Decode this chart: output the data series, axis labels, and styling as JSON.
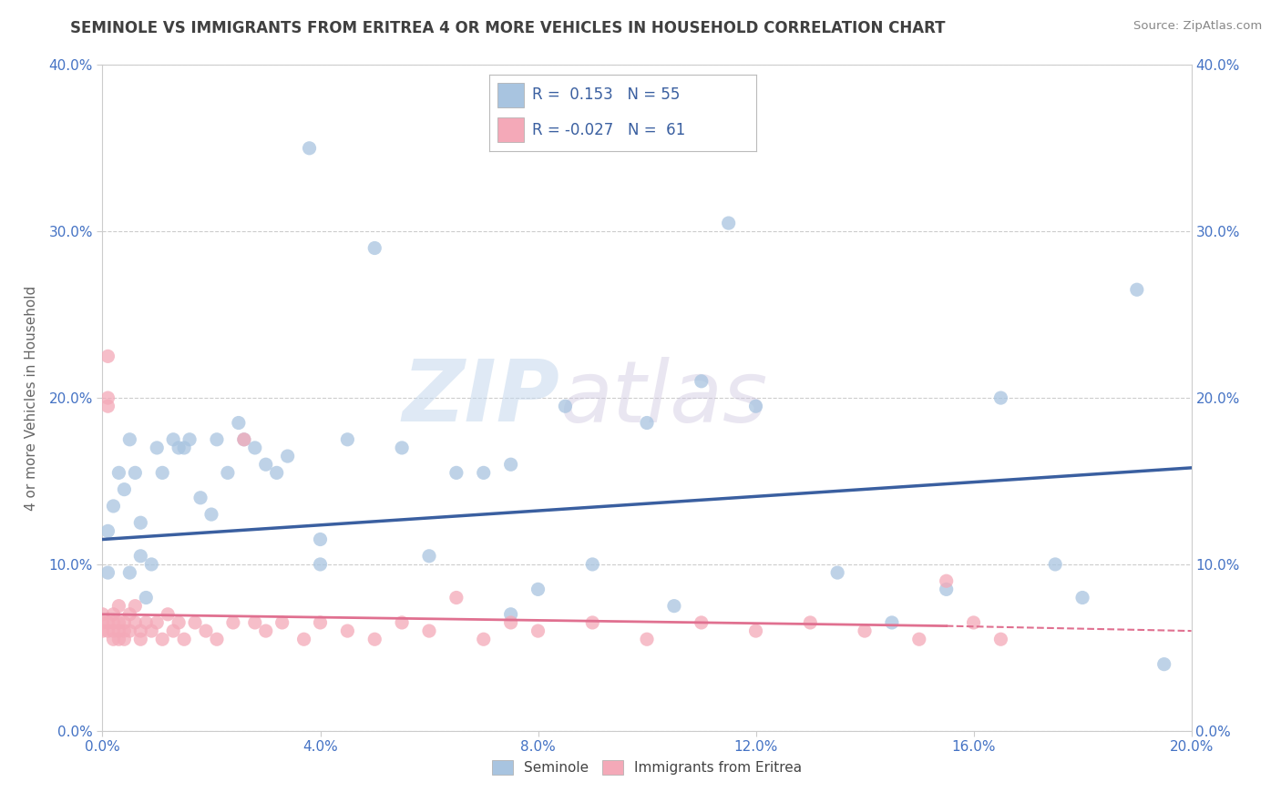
{
  "title": "SEMINOLE VS IMMIGRANTS FROM ERITREA 4 OR MORE VEHICLES IN HOUSEHOLD CORRELATION CHART",
  "source": "Source: ZipAtlas.com",
  "ylabel": "4 or more Vehicles in Household",
  "r_seminole": "0.153",
  "n_seminole": "55",
  "r_eritrea": "-0.027",
  "n_eritrea": "61",
  "seminole_color": "#a8c4e0",
  "eritrea_color": "#f4a9b8",
  "seminole_line_color": "#3a5fa0",
  "eritrea_line_color": "#e07090",
  "watermark_zip": "ZIP",
  "watermark_atlas": "atlas",
  "xlim": [
    0.0,
    0.2
  ],
  "ylim": [
    0.0,
    0.4
  ],
  "background_color": "#ffffff",
  "grid_color": "#cccccc",
  "title_color": "#404040",
  "axis_label_color": "#4472c4",
  "seminole_x": [
    0.001,
    0.001,
    0.002,
    0.003,
    0.004,
    0.005,
    0.005,
    0.006,
    0.007,
    0.007,
    0.008,
    0.009,
    0.01,
    0.011,
    0.013,
    0.014,
    0.015,
    0.016,
    0.018,
    0.02,
    0.021,
    0.023,
    0.025,
    0.026,
    0.028,
    0.03,
    0.032,
    0.034,
    0.038,
    0.04,
    0.04,
    0.045,
    0.05,
    0.055,
    0.06,
    0.065,
    0.07,
    0.075,
    0.075,
    0.08,
    0.085,
    0.09,
    0.1,
    0.105,
    0.11,
    0.115,
    0.12,
    0.135,
    0.145,
    0.155,
    0.165,
    0.175,
    0.18,
    0.19,
    0.195
  ],
  "seminole_y": [
    0.12,
    0.095,
    0.135,
    0.155,
    0.145,
    0.175,
    0.095,
    0.155,
    0.125,
    0.105,
    0.08,
    0.1,
    0.17,
    0.155,
    0.175,
    0.17,
    0.17,
    0.175,
    0.14,
    0.13,
    0.175,
    0.155,
    0.185,
    0.175,
    0.17,
    0.16,
    0.155,
    0.165,
    0.35,
    0.1,
    0.115,
    0.175,
    0.29,
    0.17,
    0.105,
    0.155,
    0.155,
    0.16,
    0.07,
    0.085,
    0.195,
    0.1,
    0.185,
    0.075,
    0.21,
    0.305,
    0.195,
    0.095,
    0.065,
    0.085,
    0.2,
    0.1,
    0.08,
    0.265,
    0.04
  ],
  "eritrea_x": [
    0.0,
    0.0,
    0.0,
    0.001,
    0.001,
    0.001,
    0.001,
    0.001,
    0.002,
    0.002,
    0.002,
    0.002,
    0.003,
    0.003,
    0.003,
    0.003,
    0.004,
    0.004,
    0.004,
    0.005,
    0.005,
    0.006,
    0.006,
    0.007,
    0.007,
    0.008,
    0.009,
    0.01,
    0.011,
    0.012,
    0.013,
    0.014,
    0.015,
    0.017,
    0.019,
    0.021,
    0.024,
    0.026,
    0.028,
    0.03,
    0.033,
    0.037,
    0.04,
    0.045,
    0.05,
    0.055,
    0.06,
    0.065,
    0.07,
    0.075,
    0.08,
    0.09,
    0.1,
    0.11,
    0.12,
    0.13,
    0.14,
    0.15,
    0.155,
    0.16,
    0.165
  ],
  "eritrea_y": [
    0.07,
    0.065,
    0.06,
    0.225,
    0.2,
    0.195,
    0.065,
    0.06,
    0.07,
    0.065,
    0.06,
    0.055,
    0.075,
    0.065,
    0.06,
    0.055,
    0.065,
    0.06,
    0.055,
    0.07,
    0.06,
    0.075,
    0.065,
    0.06,
    0.055,
    0.065,
    0.06,
    0.065,
    0.055,
    0.07,
    0.06,
    0.065,
    0.055,
    0.065,
    0.06,
    0.055,
    0.065,
    0.175,
    0.065,
    0.06,
    0.065,
    0.055,
    0.065,
    0.06,
    0.055,
    0.065,
    0.06,
    0.08,
    0.055,
    0.065,
    0.06,
    0.065,
    0.055,
    0.065,
    0.06,
    0.065,
    0.06,
    0.055,
    0.09,
    0.065,
    0.055
  ]
}
